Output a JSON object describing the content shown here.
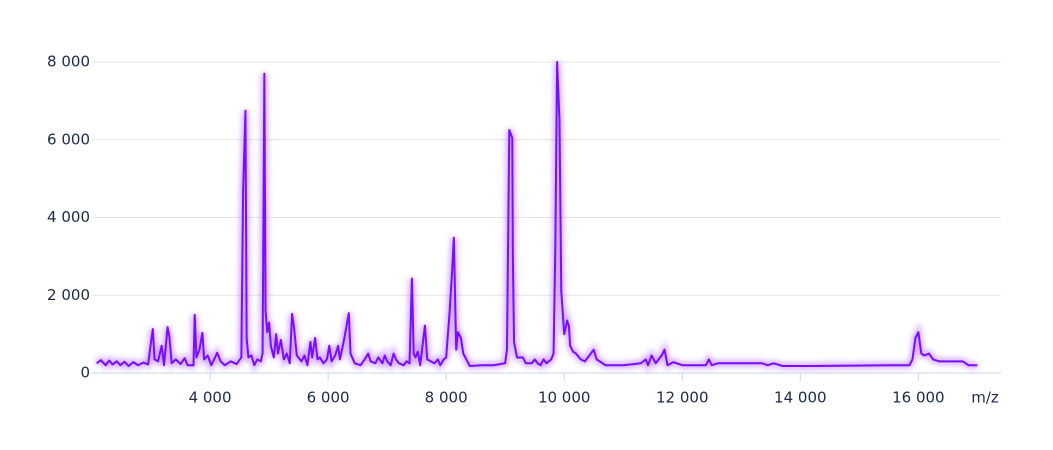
{
  "chart_data": {
    "type": "line",
    "x_label": "m/z",
    "color": "#7a0dff",
    "grid": true,
    "x": [
      2080,
      2150,
      2230,
      2290,
      2350,
      2420,
      2480,
      2550,
      2620,
      2700,
      2780,
      2870,
      2950,
      3000,
      3030,
      3060,
      3120,
      3180,
      3220,
      3280,
      3310,
      3350,
      3420,
      3500,
      3570,
      3620,
      3720,
      3740,
      3770,
      3820,
      3870,
      3900,
      3960,
      4020,
      4080,
      4120,
      4180,
      4250,
      4350,
      4450,
      4530,
      4560,
      4600,
      4620,
      4650,
      4700,
      4750,
      4800,
      4860,
      4890,
      4920,
      4940,
      4970,
      5000,
      5030,
      5080,
      5120,
      5150,
      5200,
      5250,
      5300,
      5350,
      5390,
      5420,
      5470,
      5550,
      5600,
      5650,
      5700,
      5730,
      5780,
      5820,
      5860,
      5920,
      5980,
      6020,
      6060,
      6120,
      6170,
      6200,
      6250,
      6300,
      6350,
      6380,
      6450,
      6550,
      6620,
      6680,
      6720,
      6800,
      6850,
      6920,
      6960,
      7000,
      7060,
      7110,
      7150,
      7200,
      7280,
      7330,
      7380,
      7420,
      7450,
      7480,
      7520,
      7560,
      7640,
      7680,
      7740,
      7800,
      7860,
      7900,
      7960,
      8000,
      8060,
      8100,
      8130,
      8170,
      8200,
      8250,
      8290,
      8400,
      8600,
      8800,
      9000,
      9030,
      9070,
      9120,
      9130,
      9150,
      9200,
      9300,
      9350,
      9450,
      9500,
      9550,
      9600,
      9650,
      9700,
      9780,
      9820,
      9850,
      9880,
      9920,
      9950,
      10000,
      10050,
      10080,
      10100,
      10150,
      10200,
      10280,
      10350,
      10450,
      10500,
      10550,
      10700,
      11000,
      11300,
      11380,
      11420,
      11480,
      11550,
      11650,
      11700,
      11750,
      11850,
      12000,
      12400,
      12450,
      12500,
      12600,
      13000,
      13350,
      13450,
      13550,
      13700,
      14200,
      15500,
      15850,
      15900,
      15950,
      16000,
      16050,
      16100,
      16180,
      16250,
      16350,
      16750,
      16850,
      17000
    ],
    "values": [
      250,
      330,
      200,
      320,
      220,
      300,
      200,
      290,
      180,
      280,
      200,
      270,
      220,
      800,
      1130,
      350,
      300,
      700,
      200,
      1180,
      950,
      250,
      350,
      230,
      380,
      200,
      200,
      1500,
      400,
      600,
      1030,
      350,
      450,
      200,
      380,
      520,
      300,
      200,
      300,
      230,
      400,
      4700,
      6750,
      900,
      400,
      450,
      200,
      350,
      300,
      500,
      7700,
      1600,
      1050,
      1300,
      700,
      400,
      1000,
      500,
      850,
      350,
      500,
      250,
      1520,
      1200,
      450,
      300,
      450,
      200,
      800,
      400,
      900,
      350,
      400,
      250,
      350,
      700,
      300,
      450,
      700,
      350,
      700,
      1100,
      1540,
      500,
      250,
      200,
      350,
      500,
      300,
      250,
      400,
      250,
      450,
      300,
      200,
      500,
      350,
      250,
      200,
      300,
      250,
      2430,
      500,
      400,
      550,
      200,
      1220,
      350,
      300,
      250,
      350,
      200,
      350,
      400,
      1600,
      2600,
      3480,
      600,
      1050,
      900,
      500,
      180,
      200,
      200,
      250,
      600,
      6250,
      6050,
      3000,
      800,
      400,
      400,
      250,
      250,
      350,
      250,
      200,
      350,
      250,
      350,
      500,
      3300,
      8000,
      6500,
      2100,
      1000,
      1350,
      1200,
      700,
      550,
      500,
      350,
      300,
      500,
      600,
      350,
      200,
      200,
      250,
      350,
      200,
      450,
      250,
      450,
      600,
      200,
      280,
      200,
      200,
      350,
      200,
      250,
      250,
      250,
      200,
      250,
      180,
      180,
      200,
      200,
      350,
      900,
      1050,
      500,
      450,
      500,
      350,
      300,
      300,
      200,
      200
    ],
    "xlim": [
      2000,
      17400
    ],
    "xticks": [
      {
        "value": 4000,
        "label": "4 000"
      },
      {
        "value": 6000,
        "label": "6 000"
      },
      {
        "value": 8000,
        "label": "8 000"
      },
      {
        "value": 10000,
        "label": "10 000"
      },
      {
        "value": 12000,
        "label": "12 000"
      },
      {
        "value": 14000,
        "label": "14 000"
      },
      {
        "value": 16000,
        "label": "16 000"
      }
    ],
    "ylim": [
      0,
      8000
    ],
    "yticks": [
      0,
      {
        "value": 2000,
        "label": "2 000"
      },
      {
        "value": 4000,
        "label": "4 000"
      },
      {
        "value": 6000,
        "label": "6 000"
      },
      {
        "value": 8000,
        "label": "8 000"
      }
    ]
  }
}
